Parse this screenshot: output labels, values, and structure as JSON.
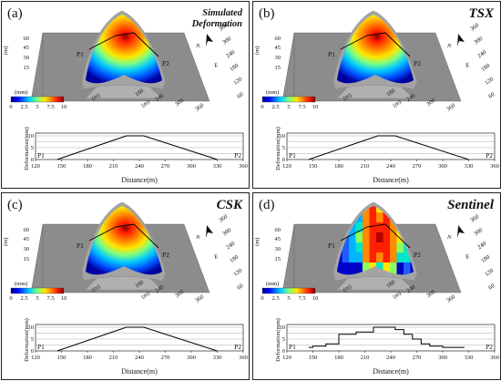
{
  "colors": {
    "surface_gray": "#8c8c8c",
    "hill_gray": "#a4a4a4",
    "profile_line": "#000000",
    "grid_line": "#9a9a9a"
  },
  "chart_data": [
    {
      "type": "line",
      "panel_label": "(a)",
      "title": "Simulated Deformation",
      "map": {
        "z_unit": "(m)",
        "z_ticks": [
          "60",
          "45",
          "30",
          "15"
        ],
        "y_unit": "(m)",
        "y_ticks": [
          "360",
          "300",
          "240",
          "180",
          "120",
          "60"
        ],
        "x_unit": "(m)",
        "x_ticks": [
          "180",
          "240",
          "300",
          "360"
        ],
        "north": "N",
        "east": "E",
        "deformation_style": "smooth",
        "colorbar": {
          "unit": "(mm)",
          "ticks": [
            "0",
            "2.5",
            "5",
            "7.5",
            "10"
          ],
          "range": [
            0,
            10
          ]
        },
        "profile_points": [
          "P1",
          "P2"
        ]
      },
      "profile": {
        "xlabel": "Distance(m)",
        "ylabel": "Deformation(mm)",
        "xlim": [
          120,
          360
        ],
        "ylim": [
          0,
          10
        ],
        "x_ticks": [
          "120",
          "150",
          "180",
          "210",
          "240",
          "270",
          "300",
          "330",
          "360"
        ],
        "y_ticks": [
          "0",
          "5",
          "10"
        ],
        "start_label": "P1",
        "end_label": "P2",
        "x": [
          145,
          225,
          245,
          330
        ],
        "y": [
          0,
          10,
          10,
          0
        ]
      }
    },
    {
      "type": "line",
      "panel_label": "(b)",
      "title": "TSX",
      "map": {
        "z_unit": "(m)",
        "z_ticks": [
          "60",
          "45",
          "30",
          "15"
        ],
        "y_unit": "(m)",
        "y_ticks": [
          "360",
          "300",
          "240",
          "180",
          "120",
          "60"
        ],
        "x_unit": "(m)",
        "x_ticks": [
          "180",
          "240",
          "300",
          "360"
        ],
        "north": "N",
        "east": "E",
        "deformation_style": "smooth",
        "colorbar": {
          "unit": "(mm)",
          "ticks": [
            "0",
            "2.5",
            "5",
            "7.5",
            "10"
          ],
          "range": [
            0,
            10
          ]
        },
        "profile_points": [
          "P1",
          "P2"
        ]
      },
      "profile": {
        "xlabel": "Distance(m)",
        "ylabel": "Deformation(mm)",
        "xlim": [
          120,
          360
        ],
        "ylim": [
          0,
          10
        ],
        "x_ticks": [
          "120",
          "150",
          "180",
          "210",
          "240",
          "270",
          "300",
          "330",
          "360"
        ],
        "y_ticks": [
          "0",
          "5",
          "10"
        ],
        "start_label": "P1",
        "end_label": "P2",
        "x": [
          145,
          225,
          245,
          330
        ],
        "y": [
          0,
          10,
          10,
          0
        ]
      }
    },
    {
      "type": "line",
      "panel_label": "(c)",
      "title": "CSK",
      "map": {
        "z_unit": "(m)",
        "z_ticks": [
          "60",
          "45",
          "30",
          "15"
        ],
        "y_unit": "(m)",
        "y_ticks": [
          "360",
          "300",
          "240",
          "180",
          "120",
          "60"
        ],
        "x_unit": "(m)",
        "x_ticks": [
          "180",
          "240",
          "300",
          "360"
        ],
        "north": "N",
        "east": "E",
        "deformation_style": "smooth",
        "colorbar": {
          "unit": "(mm)",
          "ticks": [
            "0",
            "2.5",
            "5",
            "7.5",
            "10"
          ],
          "range": [
            0,
            10
          ]
        },
        "profile_points": [
          "P1",
          "P2"
        ]
      },
      "profile": {
        "xlabel": "Distance(m)",
        "ylabel": "Deformation(mm)",
        "xlim": [
          120,
          360
        ],
        "ylim": [
          0,
          10
        ],
        "x_ticks": [
          "120",
          "150",
          "180",
          "210",
          "240",
          "270",
          "300",
          "330",
          "360"
        ],
        "y_ticks": [
          "0",
          "5",
          "10"
        ],
        "start_label": "P1",
        "end_label": "P2",
        "x": [
          145,
          225,
          245,
          330
        ],
        "y": [
          0,
          10,
          10,
          0
        ]
      }
    },
    {
      "type": "line",
      "panel_label": "(d)",
      "title": "Sentinel",
      "map": {
        "z_unit": "(m)",
        "z_ticks": [
          "60",
          "45",
          "30",
          "15"
        ],
        "y_unit": "(m)",
        "y_ticks": [
          "360",
          "300",
          "240",
          "180",
          "120",
          "60"
        ],
        "x_unit": "(m)",
        "x_ticks": [
          "180",
          "240",
          "300",
          "360"
        ],
        "north": "N",
        "east": "E",
        "deformation_style": "blocky",
        "colorbar": {
          "unit": "(mm)",
          "ticks": [
            "0",
            "2.5",
            "5",
            "7.5",
            "10"
          ],
          "range": [
            0,
            10
          ]
        },
        "profile_points": [
          "P1",
          "P2"
        ]
      },
      "profile": {
        "xlabel": "Distance(m)",
        "ylabel": "Deformation(mm)",
        "xlim": [
          120,
          360
        ],
        "ylim": [
          0,
          10
        ],
        "x_ticks": [
          "120",
          "150",
          "180",
          "210",
          "240",
          "270",
          "300",
          "330",
          "360"
        ],
        "y_ticks": [
          "0",
          "5",
          "10"
        ],
        "start_label": "P1",
        "end_label": "P2",
        "x": [
          145,
          150,
          150,
          165,
          165,
          180,
          180,
          200,
          200,
          220,
          220,
          245,
          245,
          255,
          255,
          265,
          265,
          275,
          275,
          285,
          285,
          300,
          300,
          325
        ],
        "y": [
          1.5,
          1.5,
          2,
          2,
          3,
          3,
          7,
          7,
          8,
          8,
          10,
          10,
          9,
          9,
          7,
          7,
          5,
          5,
          3,
          3,
          2,
          2,
          1.5,
          1.5
        ]
      }
    }
  ]
}
